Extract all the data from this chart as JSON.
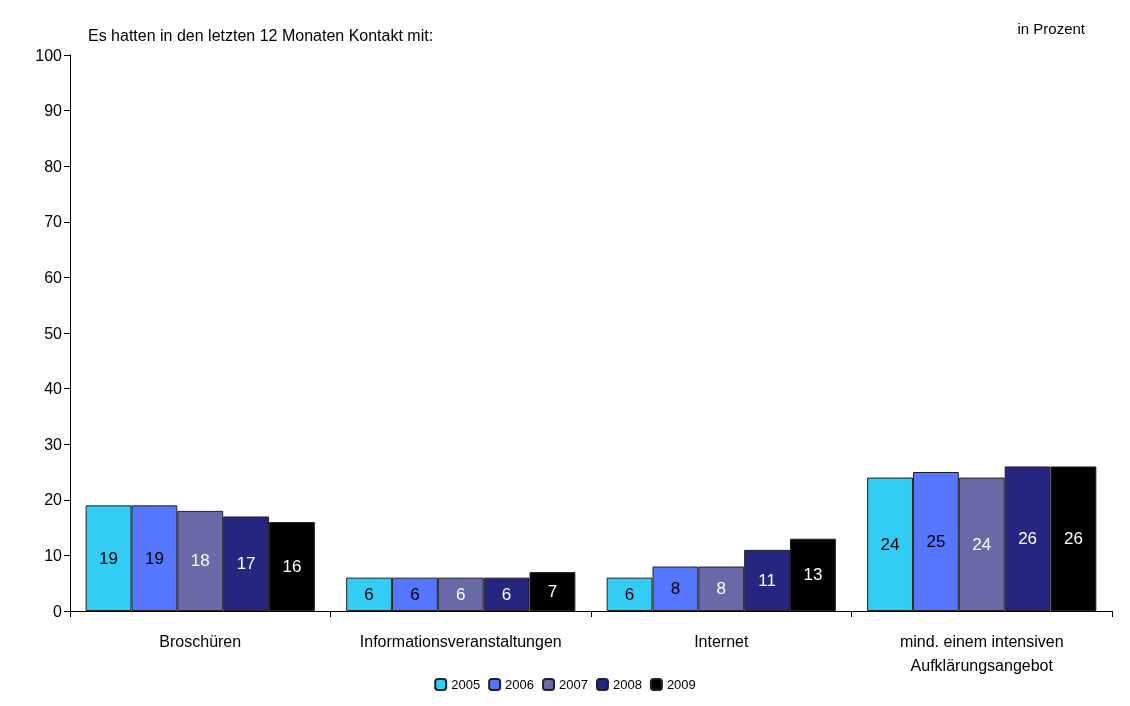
{
  "chart_data": {
    "type": "bar",
    "title": "Es hatten in den letzten 12 Monaten Kontakt mit:",
    "ylabel": "in Prozent",
    "categories": [
      "Broschüren",
      "Informationsveranstaltungen",
      "Internet",
      "mind. einem intensiven\nAufklärungsangebot"
    ],
    "series": [
      {
        "name": "2005",
        "color": "#33ccf5",
        "values": [
          19,
          6,
          6,
          24
        ]
      },
      {
        "name": "2006",
        "color": "#5577ff",
        "values": [
          19,
          6,
          8,
          25
        ]
      },
      {
        "name": "2007",
        "color": "#6a6aa8",
        "values": [
          18,
          6,
          8,
          24
        ]
      },
      {
        "name": "2008",
        "color": "#262680",
        "values": [
          17,
          6,
          11,
          26
        ]
      },
      {
        "name": "2009",
        "color": "#000000",
        "values": [
          16,
          7,
          13,
          26
        ]
      }
    ],
    "ylim": [
      0,
      100
    ],
    "yticks": [
      0,
      10,
      20,
      30,
      40,
      50,
      60,
      70,
      80,
      90,
      100
    ],
    "grid": false,
    "legend": "bottom",
    "data_labels": true
  }
}
